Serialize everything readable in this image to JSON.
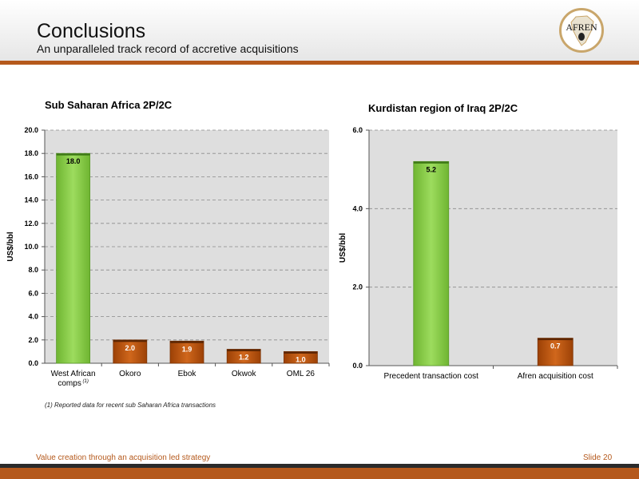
{
  "header": {
    "title": "Conclusions",
    "subtitle": "An unparalleled track record of accretive acquisitions",
    "logo_text": "AFREN"
  },
  "footnote": "(1) Reported data for recent sub Saharan Africa transactions",
  "footer": {
    "left": "Value creation through an acquisition led strategy",
    "right": "Slide 20"
  },
  "colors": {
    "green": "#8fd14f",
    "orange": "#c0560f",
    "accent": "#b5591c",
    "plot_bg": "#dedede"
  },
  "chart_data": [
    {
      "type": "bar",
      "title": "Sub Saharan Africa 2P/2C",
      "ylabel": "US$/bbl",
      "xlabel": "",
      "ylim": [
        0,
        20
      ],
      "ticks": [
        "0.0",
        "2.0",
        "4.0",
        "6.0",
        "8.0",
        "10.0",
        "12.0",
        "14.0",
        "16.0",
        "18.0",
        "20.0"
      ],
      "grid": true,
      "categories": [
        "West African comps",
        "Okoro",
        "Ebok",
        "Okwok",
        "OML 26"
      ],
      "category_notes": [
        "(1)",
        "",
        "",
        "",
        ""
      ],
      "values": [
        18.0,
        2.0,
        1.9,
        1.2,
        1.0
      ],
      "value_labels": [
        "18.0",
        "2.0",
        "1.9",
        "1.2",
        "1.0"
      ],
      "bar_colors": [
        "green",
        "orange",
        "orange",
        "orange",
        "orange"
      ]
    },
    {
      "type": "bar",
      "title": "Kurdistan region of Iraq 2P/2C",
      "ylabel": "US$/bbl",
      "xlabel": "",
      "ylim": [
        0,
        6
      ],
      "ticks": [
        "0.0",
        "2.0",
        "4.0",
        "6.0"
      ],
      "grid": true,
      "categories": [
        "Precedent transaction cost",
        "Afren acquisition cost"
      ],
      "category_notes": [
        "",
        ""
      ],
      "values": [
        5.2,
        0.7
      ],
      "value_labels": [
        "5.2",
        "0.7"
      ],
      "bar_colors": [
        "green",
        "orange"
      ]
    }
  ]
}
